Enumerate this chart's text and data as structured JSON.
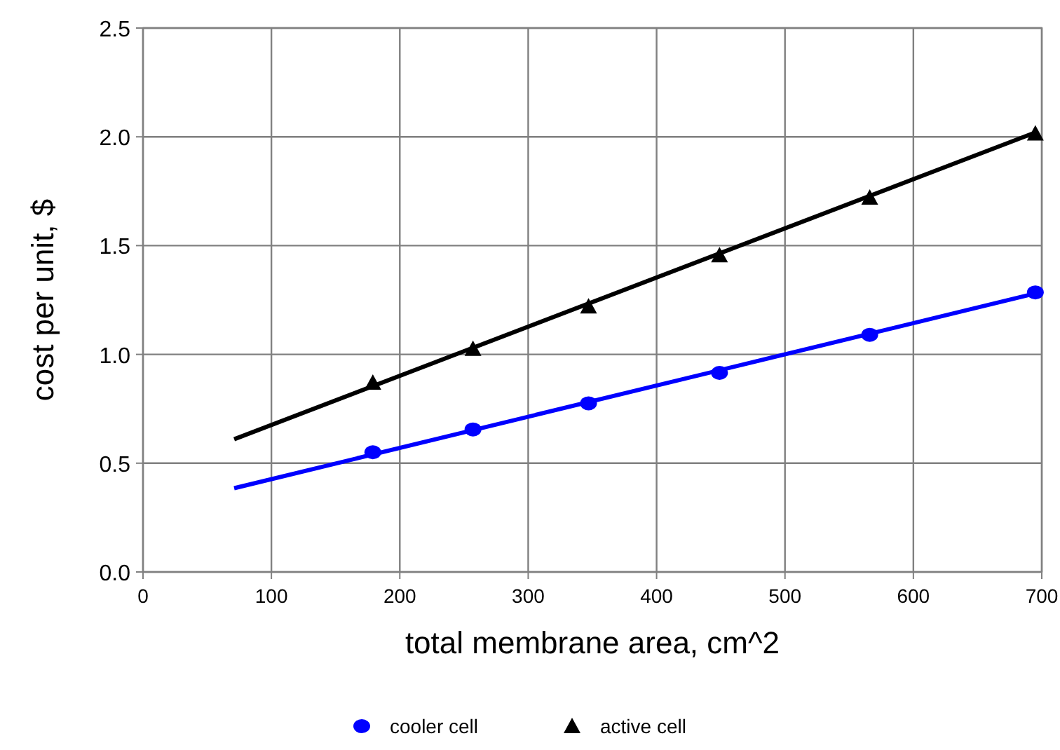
{
  "chart_data": {
    "type": "scatter",
    "xlabel": "total membrane area, cm^2",
    "ylabel": "cost per unit, $",
    "xlim": [
      0,
      700
    ],
    "xticks": [
      0,
      100,
      200,
      300,
      400,
      500,
      600,
      700
    ],
    "ylim": [
      0,
      2.5
    ],
    "yticks": [
      {
        "value": 0,
        "label": "0.0"
      },
      {
        "value": 0.5,
        "label": "0.5"
      },
      {
        "value": 1,
        "label": "1.0"
      },
      {
        "value": 1.5,
        "label": "1.5"
      },
      {
        "value": 2,
        "label": "2.0"
      },
      {
        "value": 2.5,
        "label": "2.5"
      }
    ],
    "grid": true,
    "legend": "bottom",
    "series": [
      {
        "name": "cooler cell",
        "marker": "circle",
        "color": "#0000ff",
        "x": [
          179,
          257,
          347,
          449,
          566,
          695
        ],
        "values": [
          0.55,
          0.655,
          0.775,
          0.915,
          1.09,
          1.285
        ]
      },
      {
        "name": "active cell",
        "marker": "triangle",
        "color": "#000000",
        "x": [
          179,
          257,
          347,
          449,
          566,
          695
        ],
        "values": [
          0.87,
          1.025,
          1.22,
          1.455,
          1.72,
          2.015
        ]
      },
      {
        "type": "line",
        "marker": "none",
        "color": "#0000ff",
        "x": [
          71,
          695
        ],
        "values": [
          0.385,
          1.28
        ]
      },
      {
        "type": "line",
        "marker": "none",
        "color": "#000000",
        "x": [
          71,
          695
        ],
        "values": [
          0.61,
          2.02
        ]
      }
    ]
  }
}
